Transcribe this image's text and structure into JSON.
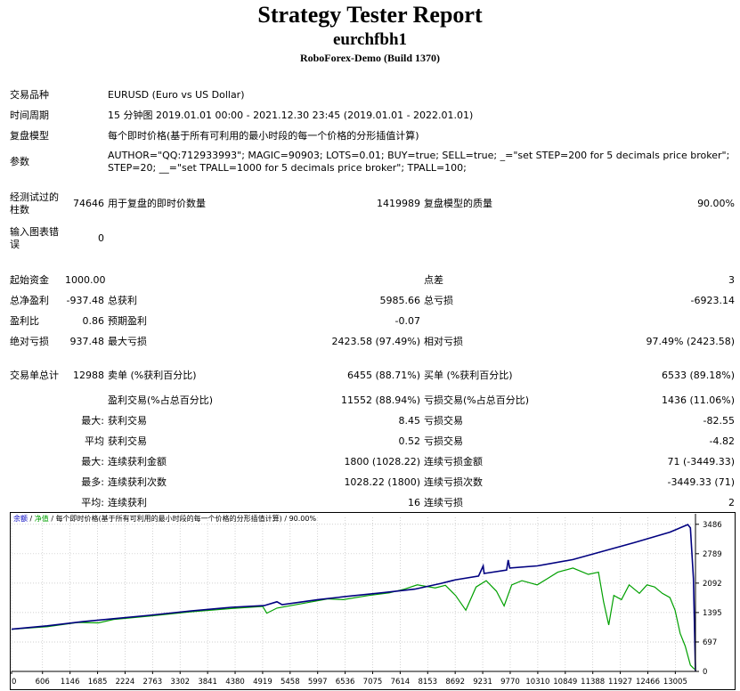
{
  "header": {
    "title": "Strategy Tester Report",
    "ea_name": "eurchfbh1",
    "server": "RoboForex-Demo (Build 1370)"
  },
  "info": {
    "symbol_label": "交易品种",
    "symbol_value": "EURUSD (Euro vs US Dollar)",
    "period_label": "时间周期",
    "period_value": "15 分钟图 2019.01.01 00:00 - 2021.12.30 23:45 (2019.01.01 - 2022.01.01)",
    "model_label": "复盘模型",
    "model_value": "每个即时价格(基于所有可利用的最小时段的每一个价格的分形插值计算)",
    "params_label": "参数",
    "params_line1": "AUTHOR=\"QQ:712933993\"; MAGIC=90903; LOTS=0.01; BUY=true; SELL=true; _=\"set STEP=200 for 5 decimals price broker\";",
    "params_line2": "STEP=20; __=\"set TPALL=1000 for 5 decimals price broker\"; TPALL=100;"
  },
  "bars": {
    "label": "经测试过的柱数",
    "value": "74646",
    "ticks_label": "用于复盘的即时价数量",
    "ticks_value": "1419989",
    "quality_label": "复盘模型的质量",
    "quality_value": "90.00%"
  },
  "errors": {
    "label": "输入图表错误",
    "value": "0"
  },
  "stats": {
    "deposit_label": "起始资金",
    "deposit_value": "1000.00",
    "spread_label": "点差",
    "spread_value": "3",
    "net_label": "总净盈利",
    "net_value": "-937.48",
    "gross_profit_label": "总获利",
    "gross_profit_value": "5985.66",
    "gross_loss_label": "总亏损",
    "gross_loss_value": "-6923.14",
    "pf_label": "盈利比",
    "pf_value": "0.86",
    "payoff_label": "预期盈利",
    "payoff_value": "-0.07",
    "abs_dd_label": "绝对亏损",
    "abs_dd_value": "937.48",
    "max_dd_label": "最大亏损",
    "max_dd_value": "2423.58 (97.49%)",
    "rel_dd_label": "相对亏损",
    "rel_dd_value": "97.49% (2423.58)"
  },
  "trades": {
    "total_label": "交易单总计",
    "total_value": "12988",
    "short_label": "卖单 (%获利百分比)",
    "short_value": "6455 (88.71%)",
    "long_label": "买单 (%获利百分比)",
    "long_value": "6533 (89.18%)",
    "win_label": "盈利交易(%占总百分比)",
    "win_value": "11552 (88.94%)",
    "loss_label": "亏损交易(%占总百分比)",
    "loss_value": "1436 (11.06%)",
    "r1_prefix": "最大:",
    "r1_l": "获利交易",
    "r1_lv": "8.45",
    "r1_r": "亏损交易",
    "r1_rv": "-82.55",
    "r2_prefix": "平均",
    "r2_l": "获利交易",
    "r2_lv": "0.52",
    "r2_r": "亏损交易",
    "r2_rv": "-4.82",
    "r3_prefix": "最大:",
    "r3_l": "连续获利金额",
    "r3_lv": "1800 (1028.22)",
    "r3_r": "连续亏损金额",
    "r3_rv": "71 (-3449.33)",
    "r4_prefix": "最多:",
    "r4_l": "连续获利次数",
    "r4_lv": "1028.22 (1800)",
    "r4_r": "连续亏损次数",
    "r4_rv": "-3449.33 (71)",
    "r5_prefix": "平均:",
    "r5_l": "连续获利",
    "r5_lv": "16",
    "r5_r": "连续亏损",
    "r5_rv": "2"
  },
  "chart_data": {
    "type": "line",
    "legend_balance": "余额",
    "legend_equity": "净值",
    "legend_rest": " / 每个即时价格(基于所有可利用的最小时段的每一个价格的分形插值计算) / 90.00%",
    "legend_sep": " / ",
    "colors": {
      "balance": "#000080",
      "equity": "#00a000",
      "grid": "#c0c0c0",
      "legend_blue": "#0000c0"
    },
    "x_ticks": [
      0,
      606,
      1146,
      1685,
      2224,
      2763,
      3302,
      3841,
      4380,
      4919,
      5458,
      5997,
      6536,
      7075,
      7614,
      8153,
      8692,
      9231,
      9770,
      10310,
      10849,
      11388,
      11927,
      12466,
      13005
    ],
    "y_ticks": [
      0,
      697,
      1395,
      2092,
      2789,
      3486
    ],
    "xlim": [
      0,
      13400
    ],
    "ylim": [
      0,
      3650
    ],
    "balance": [
      [
        0,
        1000
      ],
      [
        700,
        1080
      ],
      [
        1400,
        1180
      ],
      [
        2000,
        1250
      ],
      [
        2700,
        1330
      ],
      [
        3500,
        1430
      ],
      [
        4300,
        1520
      ],
      [
        4950,
        1560
      ],
      [
        5200,
        1650
      ],
      [
        5300,
        1580
      ],
      [
        6000,
        1700
      ],
      [
        6600,
        1780
      ],
      [
        7300,
        1870
      ],
      [
        7900,
        1950
      ],
      [
        8400,
        2080
      ],
      [
        8700,
        2170
      ],
      [
        9150,
        2260
      ],
      [
        9240,
        2500
      ],
      [
        9260,
        2320
      ],
      [
        9700,
        2400
      ],
      [
        9730,
        2640
      ],
      [
        9760,
        2450
      ],
      [
        10300,
        2500
      ],
      [
        11000,
        2650
      ],
      [
        12200,
        3050
      ],
      [
        12900,
        3300
      ],
      [
        13250,
        3480
      ],
      [
        13300,
        3400
      ],
      [
        13360,
        2200
      ],
      [
        13400,
        0
      ]
    ],
    "equity": [
      [
        0,
        1000
      ],
      [
        700,
        1060
      ],
      [
        1300,
        1160
      ],
      [
        1700,
        1150
      ],
      [
        2000,
        1230
      ],
      [
        2700,
        1310
      ],
      [
        3500,
        1410
      ],
      [
        4300,
        1490
      ],
      [
        4920,
        1540
      ],
      [
        5000,
        1380
      ],
      [
        5200,
        1500
      ],
      [
        5800,
        1630
      ],
      [
        6200,
        1720
      ],
      [
        6500,
        1700
      ],
      [
        7000,
        1800
      ],
      [
        7400,
        1860
      ],
      [
        7700,
        1950
      ],
      [
        7950,
        2050
      ],
      [
        8300,
        1980
      ],
      [
        8500,
        2040
      ],
      [
        8700,
        1800
      ],
      [
        8900,
        1450
      ],
      [
        9100,
        2000
      ],
      [
        9300,
        2150
      ],
      [
        9500,
        1900
      ],
      [
        9650,
        1550
      ],
      [
        9800,
        2050
      ],
      [
        10000,
        2150
      ],
      [
        10300,
        2050
      ],
      [
        10500,
        2200
      ],
      [
        10700,
        2350
      ],
      [
        11000,
        2450
      ],
      [
        11300,
        2300
      ],
      [
        11500,
        2350
      ],
      [
        11600,
        1650
      ],
      [
        11700,
        1100
      ],
      [
        11800,
        1800
      ],
      [
        11950,
        1700
      ],
      [
        12100,
        2050
      ],
      [
        12300,
        1850
      ],
      [
        12450,
        2050
      ],
      [
        12600,
        2000
      ],
      [
        12750,
        1850
      ],
      [
        12900,
        1750
      ],
      [
        13000,
        1450
      ],
      [
        13100,
        900
      ],
      [
        13200,
        600
      ],
      [
        13300,
        150
      ],
      [
        13380,
        50
      ]
    ]
  }
}
